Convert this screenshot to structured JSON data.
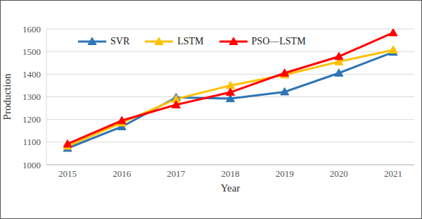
{
  "chart_data": {
    "type": "line",
    "x_label": "Year",
    "y_label": "Production",
    "categories": [
      "2015",
      "2016",
      "2017",
      "2018",
      "2019",
      "2020",
      "2021"
    ],
    "series": [
      {
        "name": "SVR",
        "color": "#2e75b6",
        "marker": "triangle",
        "values": [
          1073,
          1168,
          1297,
          1292,
          1322,
          1405,
          1497
        ]
      },
      {
        "name": "LSTM",
        "color": "#ffc000",
        "marker": "triangle",
        "values": [
          1082,
          1185,
          1290,
          1350,
          1397,
          1455,
          1507
        ]
      },
      {
        "name": "PSO—LSTM",
        "color": "#ff0000",
        "marker": "triangle",
        "values": [
          1092,
          1195,
          1265,
          1320,
          1405,
          1478,
          1583
        ]
      }
    ],
    "ylim": [
      1000,
      1600
    ],
    "yticks": [
      1000,
      1100,
      1200,
      1300,
      1400,
      1500,
      1600
    ],
    "grid": true,
    "legend": "top-left"
  }
}
